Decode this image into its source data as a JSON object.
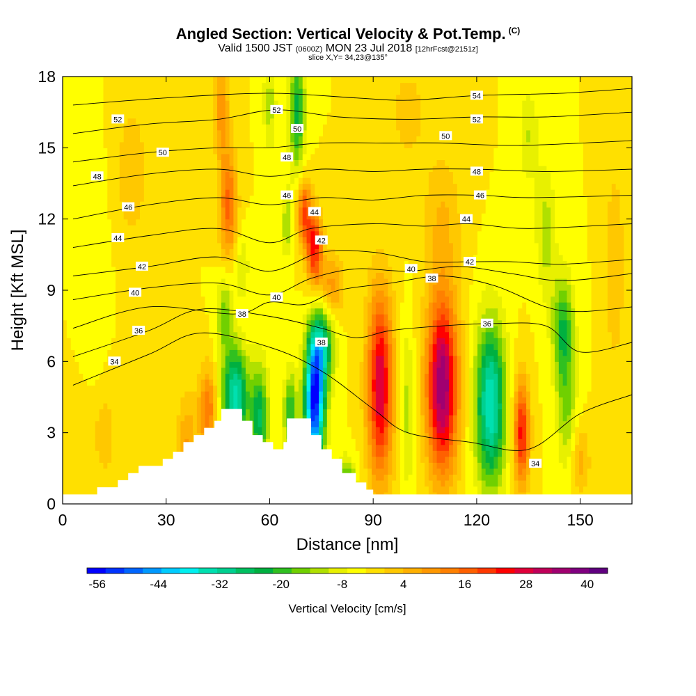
{
  "title": {
    "main": "Angled Section: Vertical Velocity & Pot.Temp.",
    "units_tag": "(C)",
    "valid_prefix": "Valid 1500 JST",
    "utc": "(0600Z)",
    "valid_date": "MON 23 Jul 2018",
    "forecast": "[12hrFcst@2151z]",
    "slice": "slice X,Y= 34,23@135°"
  },
  "chart_data": {
    "type": "heatmap",
    "xlabel": "Distance [nm]",
    "ylabel": "Height [Kft MSL]",
    "xlim": [
      0,
      165
    ],
    "ylim": [
      0,
      18
    ],
    "x_ticks": [
      0,
      30,
      60,
      90,
      120,
      150
    ],
    "y_ticks": [
      0,
      3,
      6,
      9,
      12,
      15,
      18
    ],
    "colorbar": {
      "label": "Vertical Velocity [cm/s]",
      "min": -58,
      "max": 44,
      "step": 4,
      "tick_labels": [
        -56,
        -44,
        -32,
        -20,
        -8,
        4,
        16,
        28,
        40
      ],
      "colors": [
        "#0000ff",
        "#0033ff",
        "#0066ff",
        "#0099ff",
        "#00ccff",
        "#00f0f0",
        "#00e0b0",
        "#00d090",
        "#00c060",
        "#00b040",
        "#30c020",
        "#70d000",
        "#b0e000",
        "#e8f000",
        "#ffff00",
        "#ffe000",
        "#ffc800",
        "#ffb000",
        "#ff9800",
        "#ff8000",
        "#ff6000",
        "#ff3800",
        "#ff0000",
        "#e0003a",
        "#c0005a",
        "#a00070",
        "#800080",
        "#600080"
      ]
    },
    "terrain": [
      [
        0,
        0.4
      ],
      [
        10,
        0.4
      ],
      [
        10,
        0.7
      ],
      [
        16,
        0.7
      ],
      [
        16,
        1.0
      ],
      [
        19,
        1.0
      ],
      [
        19,
        1.3
      ],
      [
        22,
        1.3
      ],
      [
        22,
        1.6
      ],
      [
        29,
        1.6
      ],
      [
        29,
        1.9
      ],
      [
        32,
        1.9
      ],
      [
        32,
        2.2
      ],
      [
        35,
        2.2
      ],
      [
        35,
        2.6
      ],
      [
        38,
        2.6
      ],
      [
        38,
        2.9
      ],
      [
        41,
        2.9
      ],
      [
        41,
        3.2
      ],
      [
        44,
        3.2
      ],
      [
        44,
        3.5
      ],
      [
        46,
        3.5
      ],
      [
        46,
        4.0
      ],
      [
        52,
        4.0
      ],
      [
        52,
        3.5
      ],
      [
        55,
        3.5
      ],
      [
        55,
        2.9
      ],
      [
        58,
        2.9
      ],
      [
        58,
        2.6
      ],
      [
        61,
        2.6
      ],
      [
        61,
        2.3
      ],
      [
        64,
        2.3
      ],
      [
        64,
        2.6
      ],
      [
        65,
        2.6
      ],
      [
        65,
        3.6
      ],
      [
        72,
        3.6
      ],
      [
        72,
        2.9
      ],
      [
        75,
        2.9
      ],
      [
        75,
        2.3
      ],
      [
        78,
        2.3
      ],
      [
        78,
        1.9
      ],
      [
        81,
        1.9
      ],
      [
        81,
        1.3
      ],
      [
        85,
        1.3
      ],
      [
        85,
        0.9
      ],
      [
        88,
        0.9
      ],
      [
        88,
        0.6
      ],
      [
        90,
        0.6
      ],
      [
        90,
        0.4
      ],
      [
        165,
        0.4
      ]
    ],
    "velocity_features": [
      {
        "x": 110,
        "y": 5,
        "sx": 3.2,
        "sy": 2.6,
        "value": 44
      },
      {
        "x": 92,
        "y": 5,
        "sx": 2.6,
        "sy": 2.8,
        "value": 36
      },
      {
        "x": 133,
        "y": 3,
        "sx": 1.6,
        "sy": 1.6,
        "value": 30
      },
      {
        "x": 73,
        "y": 4.2,
        "sx": 2.0,
        "sy": 1.8,
        "value": -56
      },
      {
        "x": 75,
        "y": 6.6,
        "sx": 2.4,
        "sy": 1.2,
        "value": -28
      },
      {
        "x": 50,
        "y": 4.6,
        "sx": 2.6,
        "sy": 1.4,
        "value": -34
      },
      {
        "x": 57,
        "y": 3.6,
        "sx": 1.8,
        "sy": 1.6,
        "value": -24
      },
      {
        "x": 66,
        "y": 3.8,
        "sx": 1.4,
        "sy": 1.2,
        "value": -20
      },
      {
        "x": 124,
        "y": 4.2,
        "sx": 3.0,
        "sy": 2.4,
        "value": -36
      },
      {
        "x": 100,
        "y": 4.0,
        "sx": 1.3,
        "sy": 2.4,
        "value": -10
      },
      {
        "x": 145,
        "y": 7.4,
        "sx": 2.2,
        "sy": 1.6,
        "value": -20
      },
      {
        "x": 146,
        "y": 4.0,
        "sx": 2.0,
        "sy": 1.8,
        "value": -12
      },
      {
        "x": 82,
        "y": 0.9,
        "sx": 2.0,
        "sy": 0.7,
        "value": -20
      },
      {
        "x": 73,
        "y": 10.8,
        "sx": 1.6,
        "sy": 1.1,
        "value": 30
      },
      {
        "x": 70,
        "y": 12.3,
        "sx": 1.4,
        "sy": 1.0,
        "value": 24
      },
      {
        "x": 78,
        "y": 9.2,
        "sx": 2.4,
        "sy": 0.9,
        "value": 14
      },
      {
        "x": 48,
        "y": 12.6,
        "sx": 1.8,
        "sy": 1.6,
        "value": 22
      },
      {
        "x": 46,
        "y": 16.6,
        "sx": 1.6,
        "sy": 1.4,
        "value": 14
      },
      {
        "x": 52,
        "y": 10.0,
        "sx": 1.4,
        "sy": 1.0,
        "value": -8
      },
      {
        "x": 47,
        "y": 8.0,
        "sx": 1.6,
        "sy": 1.2,
        "value": -14
      },
      {
        "x": 68,
        "y": 16.5,
        "sx": 1.6,
        "sy": 1.8,
        "value": -22
      },
      {
        "x": 65,
        "y": 11.8,
        "sx": 1.0,
        "sy": 1.0,
        "value": -12
      },
      {
        "x": 60,
        "y": 16.8,
        "sx": 1.4,
        "sy": 1.4,
        "value": -10
      },
      {
        "x": 140,
        "y": 11.5,
        "sx": 2.0,
        "sy": 2.0,
        "value": -10
      },
      {
        "x": 135,
        "y": 15.5,
        "sx": 2.0,
        "sy": 1.5,
        "value": -8
      },
      {
        "x": 42,
        "y": 4.0,
        "sx": 1.8,
        "sy": 1.2,
        "value": 20
      },
      {
        "x": 36,
        "y": 2.6,
        "sx": 2.0,
        "sy": 1.4,
        "value": 12
      },
      {
        "x": 150,
        "y": 1.8,
        "sx": 2.0,
        "sy": 1.0,
        "value": 10
      },
      {
        "x": 20,
        "y": 14.0,
        "sx": 3.0,
        "sy": 2.0,
        "value": 8
      },
      {
        "x": 110,
        "y": 12.0,
        "sx": 4.0,
        "sy": 2.0,
        "value": 8
      },
      {
        "x": 12,
        "y": 3.0,
        "sx": 3.0,
        "sy": 1.6,
        "value": 6
      },
      {
        "x": 10,
        "y": 9.0,
        "sx": 2.0,
        "sy": 3.0,
        "value": -4
      },
      {
        "x": 160,
        "y": 10.0,
        "sx": 2.0,
        "sy": 3.0,
        "value": 8
      },
      {
        "x": 100,
        "y": 16.5,
        "sx": 4.0,
        "sy": 1.5,
        "value": 6
      }
    ],
    "background_velocity": 2,
    "pot_temp_contours": [
      {
        "level": 34,
        "label_at": [
          15,
          6
        ],
        "knots": [
          [
            3,
            5.0
          ],
          [
            25,
            6.3
          ],
          [
            40,
            7.2
          ],
          [
            60,
            6.6
          ],
          [
            75,
            5.6
          ],
          [
            90,
            4.0
          ],
          [
            100,
            3.0
          ],
          [
            118,
            2.6
          ],
          [
            135,
            2.3
          ],
          [
            150,
            3.8
          ],
          [
            165,
            4.6
          ]
        ]
      },
      {
        "level": 36,
        "label_at": [
          22,
          7.3
        ],
        "knots": [
          [
            3,
            6.2
          ],
          [
            25,
            7.3
          ],
          [
            40,
            8.2
          ],
          [
            60,
            7.9
          ],
          [
            75,
            7.4
          ],
          [
            85,
            7.0
          ],
          [
            95,
            7.3
          ],
          [
            110,
            7.5
          ],
          [
            125,
            7.6
          ],
          [
            140,
            7.5
          ],
          [
            150,
            6.4
          ],
          [
            165,
            6.8
          ]
        ]
      },
      {
        "level": 38,
        "label_at": [
          52,
          8.0
        ],
        "knots": [
          [
            3,
            7.4
          ],
          [
            25,
            8.3
          ],
          [
            50,
            8.0
          ],
          [
            60,
            8.5
          ],
          [
            70,
            8.4
          ],
          [
            80,
            9.0
          ],
          [
            95,
            9.3
          ],
          [
            110,
            9.6
          ],
          [
            125,
            9.2
          ],
          [
            140,
            8.3
          ],
          [
            150,
            8.1
          ],
          [
            165,
            8.3
          ]
        ]
      },
      {
        "level": 40,
        "label_at": [
          21,
          8.9
        ],
        "knots": [
          [
            3,
            8.6
          ],
          [
            25,
            9.1
          ],
          [
            45,
            9.3
          ],
          [
            60,
            8.8
          ],
          [
            72,
            9.5
          ],
          [
            85,
            9.9
          ],
          [
            100,
            9.8
          ],
          [
            115,
            10.0
          ],
          [
            130,
            9.7
          ],
          [
            145,
            9.4
          ],
          [
            165,
            9.7
          ]
        ]
      },
      {
        "level": 42,
        "label_at": [
          23,
          10.0
        ],
        "knots": [
          [
            3,
            9.6
          ],
          [
            25,
            10.0
          ],
          [
            45,
            10.4
          ],
          [
            60,
            9.8
          ],
          [
            75,
            10.6
          ],
          [
            90,
            10.6
          ],
          [
            105,
            10.2
          ],
          [
            118,
            10.2
          ],
          [
            130,
            10.2
          ],
          [
            145,
            10.1
          ],
          [
            165,
            10.3
          ]
        ]
      },
      {
        "level": 44,
        "label_at": [
          16,
          11.2
        ],
        "knots": [
          [
            3,
            10.8
          ],
          [
            25,
            11.3
          ],
          [
            45,
            11.6
          ],
          [
            60,
            11.0
          ],
          [
            72,
            11.6
          ],
          [
            90,
            11.8
          ],
          [
            105,
            11.7
          ],
          [
            118,
            11.8
          ],
          [
            135,
            11.6
          ],
          [
            165,
            11.8
          ]
        ]
      },
      {
        "level": 46,
        "label_at": [
          19,
          12.5
        ],
        "knots": [
          [
            3,
            12.0
          ],
          [
            25,
            12.6
          ],
          [
            45,
            12.9
          ],
          [
            60,
            12.6
          ],
          [
            75,
            12.9
          ],
          [
            90,
            12.8
          ],
          [
            105,
            13.0
          ],
          [
            121,
            13.0
          ],
          [
            135,
            12.9
          ],
          [
            165,
            13.0
          ]
        ]
      },
      {
        "level": 48,
        "label_at": [
          10,
          13.8
        ],
        "knots": [
          [
            3,
            13.4
          ],
          [
            25,
            13.9
          ],
          [
            45,
            14.1
          ],
          [
            60,
            13.8
          ],
          [
            75,
            14.1
          ],
          [
            90,
            14.0
          ],
          [
            105,
            14.1
          ],
          [
            120,
            14.1
          ],
          [
            140,
            14.0
          ],
          [
            165,
            14.1
          ]
        ]
      },
      {
        "level": 50,
        "label_at": [
          29,
          14.8
        ],
        "knots": [
          [
            3,
            14.4
          ],
          [
            25,
            14.8
          ],
          [
            45,
            15.0
          ],
          [
            60,
            15.0
          ],
          [
            75,
            15.2
          ],
          [
            95,
            15.2
          ],
          [
            110,
            15.2
          ],
          [
            132,
            15.1
          ],
          [
            165,
            15.3
          ]
        ]
      },
      {
        "level": 52,
        "label_at": [
          16,
          16.2
        ],
        "knots": [
          [
            3,
            15.6
          ],
          [
            25,
            16.0
          ],
          [
            45,
            16.2
          ],
          [
            62,
            16.6
          ],
          [
            80,
            16.3
          ],
          [
            100,
            16.2
          ],
          [
            120,
            16.3
          ],
          [
            140,
            16.3
          ],
          [
            165,
            16.5
          ]
        ]
      },
      {
        "level": 54,
        "label_at": [
          120,
          17.2
        ],
        "knots": [
          [
            3,
            16.8
          ],
          [
            30,
            17.1
          ],
          [
            60,
            17.3
          ],
          [
            85,
            17.1
          ],
          [
            100,
            17.0
          ],
          [
            120,
            17.2
          ],
          [
            145,
            17.3
          ],
          [
            165,
            17.5
          ]
        ]
      }
    ],
    "extra_contour_labels": [
      {
        "text": "52",
        "x": 62,
        "y": 16.6
      },
      {
        "text": "50",
        "x": 68,
        "y": 15.8
      },
      {
        "text": "48",
        "x": 65,
        "y": 14.6
      },
      {
        "text": "46",
        "x": 65,
        "y": 13.0
      },
      {
        "text": "44",
        "x": 73,
        "y": 12.3
      },
      {
        "text": "42",
        "x": 75,
        "y": 11.1
      },
      {
        "text": "40",
        "x": 62,
        "y": 8.7
      },
      {
        "text": "38",
        "x": 75,
        "y": 6.8
      },
      {
        "text": "52",
        "x": 120,
        "y": 16.2
      },
      {
        "text": "50",
        "x": 111,
        "y": 15.5
      },
      {
        "text": "48",
        "x": 120,
        "y": 14.0
      },
      {
        "text": "46",
        "x": 121,
        "y": 13.0
      },
      {
        "text": "44",
        "x": 117,
        "y": 12.0
      },
      {
        "text": "42",
        "x": 118,
        "y": 10.2
      },
      {
        "text": "40",
        "x": 101,
        "y": 9.9
      },
      {
        "text": "38",
        "x": 107,
        "y": 9.5
      },
      {
        "text": "36",
        "x": 123,
        "y": 7.6
      },
      {
        "text": "34",
        "x": 137,
        "y": 1.7
      }
    ]
  }
}
